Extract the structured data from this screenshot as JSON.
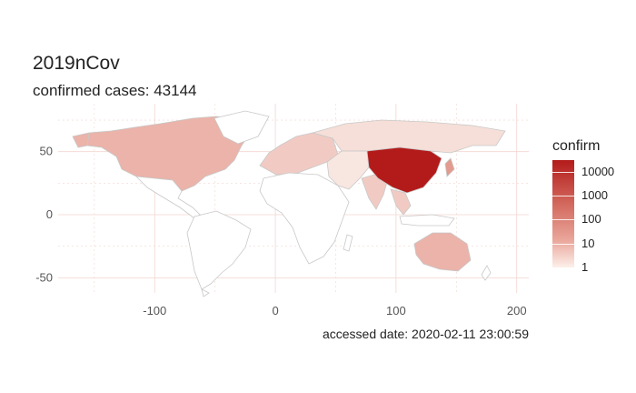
{
  "title": "2019nCov",
  "subtitle": "confirmed cases: 43144",
  "caption": "accessed date: 2020-02-11 23:00:59",
  "legend": {
    "title": "confirm",
    "scale": "log10",
    "labels": [
      {
        "text": "10000",
        "value": 10000
      },
      {
        "text": "1000",
        "value": 1000
      },
      {
        "text": "100",
        "value": 100
      },
      {
        "text": "10",
        "value": 10
      },
      {
        "text": "1",
        "value": 1
      }
    ],
    "color_low": "#fcf0ea",
    "color_high": "#b31b1b"
  },
  "axes": {
    "x_ticks": [
      -100,
      0,
      100,
      200
    ],
    "y_ticks": [
      50,
      0,
      -50
    ],
    "xlim": [
      -180,
      210
    ],
    "ylim": [
      -62,
      88
    ]
  },
  "colors": {
    "land_default": "#ffffff",
    "border": "#c8c8c8",
    "grid": "#f2d6d0"
  }
}
